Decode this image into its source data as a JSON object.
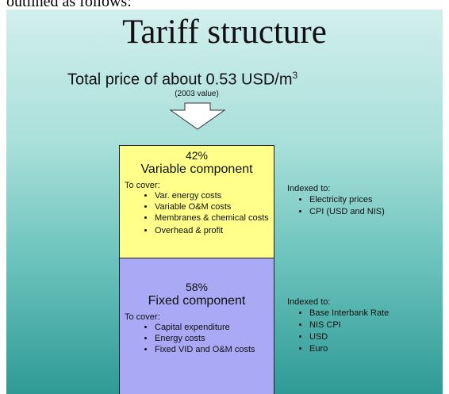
{
  "header": {
    "cut_text": "outlined as follows:"
  },
  "slide": {
    "title": "Tariff structure",
    "price_line": {
      "text": "Total price of about 0.53 USD/m",
      "sup": "3"
    },
    "note": "(2003 value)",
    "components": [
      {
        "percent": "42%",
        "name": "Variable component",
        "cover_label": "To cover:",
        "items": [
          "Var. energy costs",
          "Variable O&M costs",
          "Membranes & chemical costs",
          "Overhead & profit"
        ]
      },
      {
        "percent": "58%",
        "name": "Fixed component",
        "cover_label": "To cover:",
        "items": [
          "Capital expenditure",
          "Energy costs",
          "Fixed VID and O&M costs"
        ]
      }
    ],
    "indexed": [
      {
        "label": "Indexed to:",
        "items": [
          "Electricity prices",
          "CPI (USD and NIS)"
        ]
      },
      {
        "label": "Indexed to:",
        "items": [
          "Base Interbank Rate",
          "NIS CPI",
          "USD",
          "Euro"
        ]
      }
    ]
  }
}
